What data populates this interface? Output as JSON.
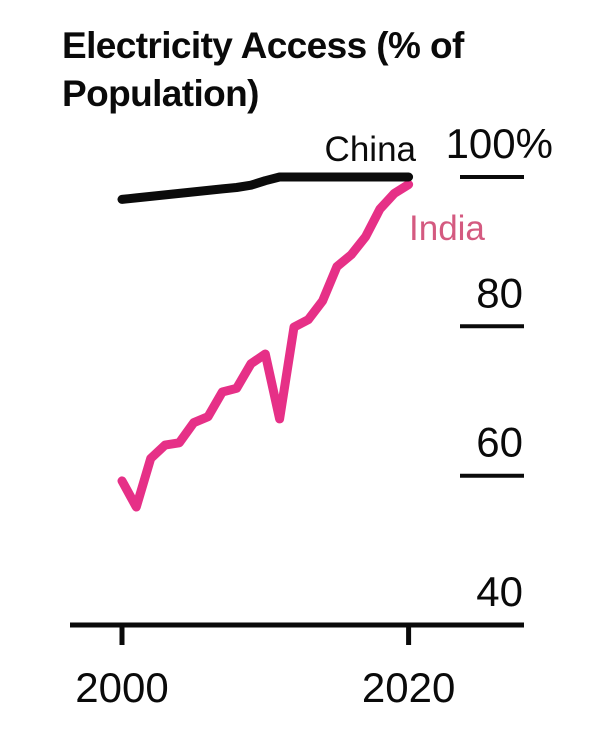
{
  "background_color": "#ffffff",
  "text_color": "#0a0a0a",
  "chart_data": {
    "type": "line",
    "title": "Electricity Access (% of Population)",
    "title_lines": [
      "Electricity Access (% of",
      "Population)"
    ],
    "xlabel": "",
    "ylabel": "",
    "grid": false,
    "legend_position": "direct-line-end-labels",
    "y_axis_side": "right",
    "xlim": [
      1998,
      2023
    ],
    "ylim": [
      40,
      100
    ],
    "x": [
      2000,
      2001,
      2002,
      2003,
      2004,
      2005,
      2006,
      2007,
      2008,
      2009,
      2010,
      2011,
      2012,
      2013,
      2014,
      2015,
      2016,
      2017,
      2018,
      2019,
      2020
    ],
    "series": [
      {
        "name": "India",
        "color": "#e63087",
        "label_color": "#d45a80",
        "values": [
          59.3,
          55.8,
          62.3,
          64.1,
          64.4,
          67.1,
          67.9,
          71.2,
          71.7,
          75.0,
          76.3,
          67.6,
          79.9,
          80.9,
          83.4,
          88.0,
          89.6,
          92.0,
          95.7,
          97.8,
          99.0
        ]
      },
      {
        "name": "China",
        "color": "#0b0b0b",
        "label_color": "#0b0b0b",
        "values": [
          97.0,
          97.2,
          97.4,
          97.6,
          97.8,
          98.0,
          98.2,
          98.4,
          98.6,
          98.9,
          99.5,
          100,
          100,
          100,
          100,
          100,
          100,
          100,
          100,
          100,
          100
        ]
      }
    ],
    "yticks": {
      "labels": [
        "100%",
        "80",
        "60",
        "40"
      ],
      "values": [
        100,
        80,
        60,
        40
      ]
    },
    "xticks": {
      "labels": [
        "2000",
        "2020"
      ],
      "values": [
        2000,
        2020
      ]
    }
  }
}
